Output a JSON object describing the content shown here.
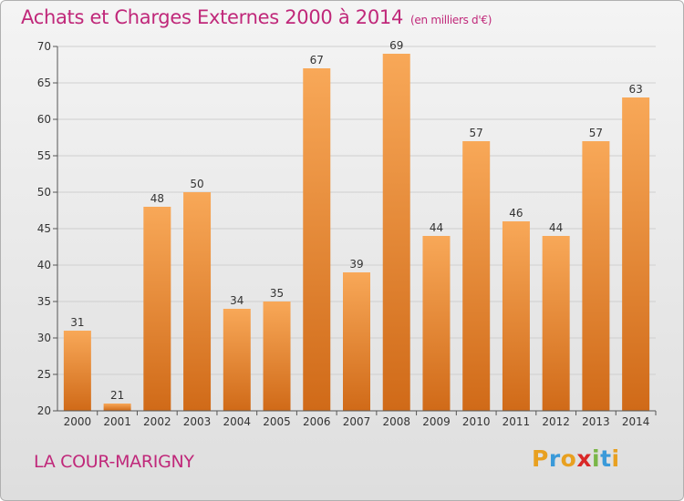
{
  "title": "Achats et Charges Externes 2000 à 2014",
  "subtitle": "(en milliers d'€)",
  "commune": "LA COUR-MARIGNY",
  "logo": {
    "letters": [
      "P",
      "r",
      "o",
      "x",
      "i",
      "t",
      "i"
    ],
    "colors": [
      "#e8a020",
      "#3a9ad9",
      "#e8a020",
      "#d92828",
      "#7ab648",
      "#3a9ad9",
      "#e8a020"
    ]
  },
  "chart_data": {
    "type": "bar",
    "categories": [
      "2000",
      "2001",
      "2002",
      "2003",
      "2004",
      "2005",
      "2006",
      "2007",
      "2008",
      "2009",
      "2010",
      "2011",
      "2012",
      "2013",
      "2014"
    ],
    "values": [
      31,
      21,
      48,
      50,
      34,
      35,
      67,
      39,
      69,
      44,
      57,
      46,
      44,
      57,
      63
    ],
    "ylim": [
      20,
      70
    ],
    "yticks": [
      "20",
      "25",
      "30",
      "35",
      "40",
      "45",
      "50",
      "55",
      "60",
      "65",
      "70"
    ],
    "grid": true,
    "colors": {
      "bar_top": "#f8a858",
      "bar_bottom": "#d06a18",
      "grid": "#cfcfcf",
      "axis": "#555555"
    }
  }
}
